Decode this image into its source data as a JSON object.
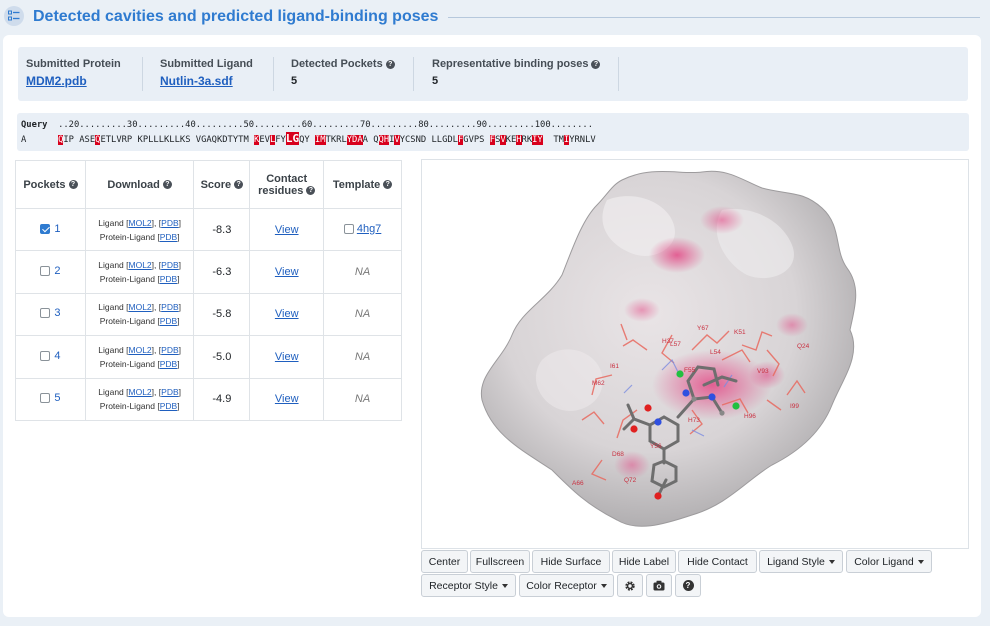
{
  "header": {
    "title": "Detected cavities and predicted ligand-binding poses",
    "icon": "checklist-icon"
  },
  "summary": {
    "protein_label": "Submitted Protein",
    "protein_value": "MDM2.pdb",
    "ligand_label": "Submitted Ligand",
    "ligand_value": "Nutlin-3a.sdf",
    "pockets_label": "Detected Pockets",
    "pockets_value": "5",
    "poses_label": "Representative binding poses",
    "poses_value": "5"
  },
  "sequence": {
    "query_label": "Query",
    "ruler": "..20.........30.........40.........50.........60.........70.........80.........90.........100........",
    "chain_label": "A",
    "highlight_color": "#d8001c"
  },
  "table": {
    "headers": {
      "pockets": "Pockets",
      "download": "Download",
      "score": "Score",
      "contact_line1": "Contact",
      "contact_line2": "residues",
      "template": "Template"
    },
    "download": {
      "ligand": "Ligand",
      "protein_ligand": "Protein-Ligand",
      "mol2": "MOL2",
      "pdb": "PDB",
      "comma": ", "
    },
    "view_label": "View",
    "rows": [
      {
        "id": "1",
        "checked": true,
        "score": "-8.3",
        "template": "4hg7"
      },
      {
        "id": "2",
        "checked": false,
        "score": "-6.3",
        "template": "NA"
      },
      {
        "id": "3",
        "checked": false,
        "score": "-5.8",
        "template": "NA"
      },
      {
        "id": "4",
        "checked": false,
        "score": "-5.0",
        "template": "NA"
      },
      {
        "id": "5",
        "checked": false,
        "score": "-4.9",
        "template": "NA"
      }
    ]
  },
  "viewer": {
    "residue_labels": [
      "I61",
      "K51",
      "Q24",
      "L54",
      "I99",
      "Y67",
      "M62",
      "H96",
      "H73",
      "L57",
      "V93",
      "F55",
      "D68",
      "A66",
      "Q72",
      "Y56",
      "H37"
    ]
  },
  "toolbar": {
    "center": "Center",
    "fullscreen": "Fullscreen",
    "hide_surface": "Hide Surface",
    "hide_label": "Hide Label",
    "hide_contact": "Hide Contact",
    "ligand_style": "Ligand Style",
    "color_ligand": "Color Ligand",
    "receptor_style": "Receptor Style",
    "color_receptor": "Color Receptor",
    "settings_icon": "gear-icon",
    "camera_icon": "camera-icon",
    "help_icon": "question-icon"
  }
}
